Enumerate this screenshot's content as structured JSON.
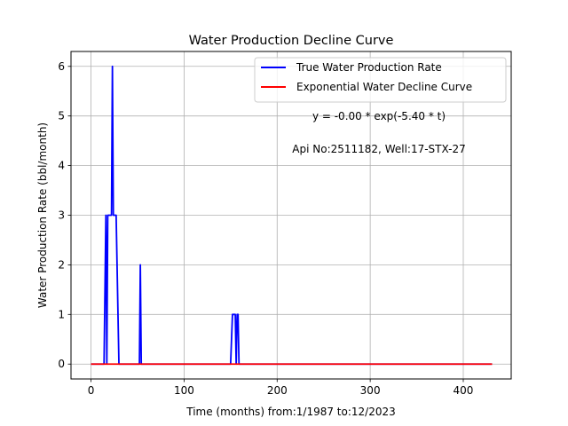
{
  "chart_data": {
    "type": "line",
    "title": "Water Production Decline Curve",
    "xlabel": "Time (months) from:1/1987 to:12/2023",
    "ylabel": "Water Production Rate (bbl/month)",
    "xlim": [
      -21.5,
      451.5
    ],
    "ylim": [
      -0.3,
      6.3
    ],
    "x_ticks": [
      0,
      100,
      200,
      300,
      400
    ],
    "y_ticks": [
      0,
      1,
      2,
      3,
      4,
      5,
      6
    ],
    "grid": true,
    "legend_position": "top-right",
    "annotations": [
      "y = -0.00 * exp(-5.40 * t)",
      "Api No:2511182, Well:17-STX-27"
    ],
    "series": [
      {
        "name": "True Water Production Rate",
        "color": "#0000ff",
        "points": [
          [
            0,
            0
          ],
          [
            14,
            0
          ],
          [
            16,
            3
          ],
          [
            17,
            0
          ],
          [
            18,
            3
          ],
          [
            22,
            3
          ],
          [
            23,
            6
          ],
          [
            24,
            3
          ],
          [
            27,
            3
          ],
          [
            30,
            0
          ],
          [
            52,
            0
          ],
          [
            53,
            2
          ],
          [
            54,
            0
          ],
          [
            150,
            0
          ],
          [
            152,
            1
          ],
          [
            155,
            1
          ],
          [
            156,
            0
          ],
          [
            157,
            1
          ],
          [
            158,
            1
          ],
          [
            159,
            0
          ],
          [
            431,
            0
          ]
        ]
      },
      {
        "name": "Exponential Water Decline Curve",
        "color": "#ff0000",
        "points": [
          [
            0,
            0
          ],
          [
            431,
            0
          ]
        ]
      }
    ]
  }
}
